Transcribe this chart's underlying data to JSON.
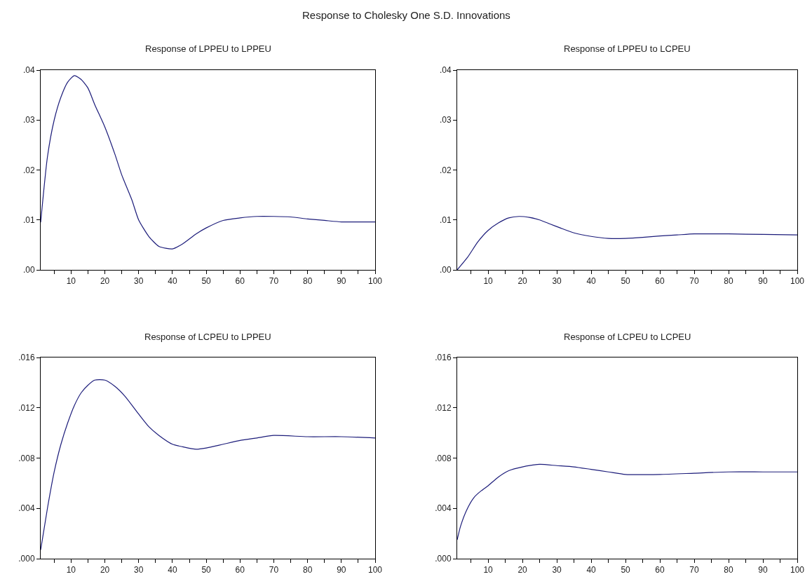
{
  "chart_data": [
    {
      "type": "line",
      "title": "Response to Cholesky One S.D. Innovations",
      "subtitle": "Response of LPPEU to LPPEU",
      "color": "#1c1c7a",
      "grid": false,
      "x": [
        1,
        3,
        5,
        7,
        9,
        11,
        13,
        15,
        17,
        20,
        23,
        25,
        28,
        30,
        33,
        36,
        40,
        43,
        47,
        50,
        55,
        60,
        65,
        70,
        75,
        80,
        85,
        90,
        95,
        100
      ],
      "values": [
        0.0095,
        0.0226,
        0.03,
        0.0346,
        0.0376,
        0.0389,
        0.0381,
        0.0364,
        0.0331,
        0.0286,
        0.0231,
        0.019,
        0.014,
        0.01,
        0.0067,
        0.0047,
        0.0042,
        0.0052,
        0.0072,
        0.0084,
        0.0099,
        0.0104,
        0.0107,
        0.0107,
        0.0106,
        0.0102,
        0.0099,
        0.0096,
        0.0096,
        0.0096
      ],
      "xlim": [
        1,
        100
      ],
      "xticks": [
        {
          "value": 5,
          "label": null
        },
        10,
        {
          "value": 15,
          "label": null
        },
        20,
        {
          "value": 25,
          "label": null
        },
        30,
        {
          "value": 35,
          "label": null
        },
        40,
        {
          "value": 45,
          "label": null
        },
        50,
        {
          "value": 55,
          "label": null
        },
        60,
        {
          "value": 65,
          "label": null
        },
        70,
        {
          "value": 75,
          "label": null
        },
        80,
        {
          "value": 85,
          "label": null
        },
        90,
        {
          "value": 95,
          "label": null
        },
        100
      ],
      "ylim": [
        0,
        0.04
      ],
      "yticks": [
        {
          "value": 0,
          "label": ".00"
        },
        {
          "value": 0.01,
          "label": ".01"
        },
        {
          "value": 0.02,
          "label": ".02"
        },
        {
          "value": 0.03,
          "label": ".03"
        },
        {
          "value": 0.04,
          "label": ".04"
        }
      ]
    },
    {
      "type": "line",
      "title": "Response of LPPEU to LCPEU",
      "color": "#1c1c7a",
      "grid": false,
      "x": [
        1,
        4,
        7,
        10,
        13,
        16,
        19,
        22,
        25,
        28,
        31,
        35,
        40,
        45,
        50,
        55,
        60,
        65,
        70,
        80,
        90,
        100
      ],
      "values": [
        0.0,
        0.0025,
        0.0056,
        0.0079,
        0.0094,
        0.0104,
        0.0107,
        0.0105,
        0.01,
        0.0092,
        0.0084,
        0.0074,
        0.0067,
        0.0063,
        0.0063,
        0.0065,
        0.0068,
        0.007,
        0.0072,
        0.0072,
        0.0071,
        0.007
      ],
      "xlim": [
        1,
        100
      ],
      "xticks": [
        {
          "value": 5,
          "label": null
        },
        10,
        {
          "value": 15,
          "label": null
        },
        20,
        {
          "value": 25,
          "label": null
        },
        30,
        {
          "value": 35,
          "label": null
        },
        40,
        {
          "value": 45,
          "label": null
        },
        50,
        {
          "value": 55,
          "label": null
        },
        60,
        {
          "value": 65,
          "label": null
        },
        70,
        {
          "value": 75,
          "label": null
        },
        80,
        {
          "value": 85,
          "label": null
        },
        90,
        {
          "value": 95,
          "label": null
        },
        100
      ],
      "ylim": [
        0,
        0.04
      ],
      "yticks": [
        {
          "value": 0,
          "label": ".00"
        },
        {
          "value": 0.01,
          "label": ".01"
        },
        {
          "value": 0.02,
          "label": ".02"
        },
        {
          "value": 0.03,
          "label": ".03"
        },
        {
          "value": 0.04,
          "label": ".04"
        }
      ]
    },
    {
      "type": "line",
      "title": "Response of LCPEU to LPPEU",
      "color": "#1c1c7a",
      "grid": false,
      "x": [
        1,
        3,
        5,
        7,
        9,
        11,
        13,
        15,
        17,
        20,
        23,
        26,
        30,
        33,
        36,
        40,
        43,
        47,
        50,
        55,
        60,
        65,
        70,
        80,
        90,
        100
      ],
      "values": [
        0.0007,
        0.004,
        0.0069,
        0.0091,
        0.0108,
        0.0122,
        0.0132,
        0.0138,
        0.0142,
        0.0142,
        0.0137,
        0.0129,
        0.0115,
        0.0105,
        0.0098,
        0.0091,
        0.0089,
        0.0087,
        0.0088,
        0.0091,
        0.0094,
        0.0096,
        0.0098,
        0.0097,
        0.0097,
        0.0096
      ],
      "xlim": [
        1,
        100
      ],
      "xticks": [
        {
          "value": 5,
          "label": null
        },
        10,
        {
          "value": 15,
          "label": null
        },
        20,
        {
          "value": 25,
          "label": null
        },
        30,
        {
          "value": 35,
          "label": null
        },
        40,
        {
          "value": 45,
          "label": null
        },
        50,
        {
          "value": 55,
          "label": null
        },
        60,
        {
          "value": 65,
          "label": null
        },
        70,
        {
          "value": 75,
          "label": null
        },
        80,
        {
          "value": 85,
          "label": null
        },
        90,
        {
          "value": 95,
          "label": null
        },
        100
      ],
      "ylim": [
        0,
        0.016
      ],
      "yticks": [
        {
          "value": 0,
          "label": ".000"
        },
        {
          "value": 0.004,
          "label": ".004"
        },
        {
          "value": 0.008,
          "label": ".008"
        },
        {
          "value": 0.012,
          "label": ".012"
        },
        {
          "value": 0.016,
          "label": ".016"
        }
      ]
    },
    {
      "type": "line",
      "title": "Response of LCPEU to LCPEU",
      "color": "#1c1c7a",
      "grid": false,
      "x": [
        1,
        2,
        4,
        6,
        8,
        10,
        13,
        16,
        20,
        25,
        30,
        35,
        40,
        45,
        50,
        60,
        70,
        80,
        90,
        100
      ],
      "values": [
        0.0015,
        0.0026,
        0.004,
        0.0049,
        0.0054,
        0.0058,
        0.0065,
        0.007,
        0.0073,
        0.0075,
        0.0074,
        0.0073,
        0.0071,
        0.0069,
        0.0067,
        0.0067,
        0.0068,
        0.0069,
        0.0069,
        0.0069
      ],
      "xlim": [
        1,
        100
      ],
      "xticks": [
        {
          "value": 5,
          "label": null
        },
        10,
        {
          "value": 15,
          "label": null
        },
        20,
        {
          "value": 25,
          "label": null
        },
        30,
        {
          "value": 35,
          "label": null
        },
        40,
        {
          "value": 45,
          "label": null
        },
        50,
        {
          "value": 55,
          "label": null
        },
        60,
        {
          "value": 65,
          "label": null
        },
        70,
        {
          "value": 75,
          "label": null
        },
        80,
        {
          "value": 85,
          "label": null
        },
        90,
        {
          "value": 95,
          "label": null
        },
        100
      ],
      "ylim": [
        0,
        0.016
      ],
      "yticks": [
        {
          "value": 0,
          "label": ".000"
        },
        {
          "value": 0.004,
          "label": ".004"
        },
        {
          "value": 0.008,
          "label": ".008"
        },
        {
          "value": 0.012,
          "label": ".012"
        },
        {
          "value": 0.016,
          "label": ".016"
        }
      ]
    }
  ]
}
